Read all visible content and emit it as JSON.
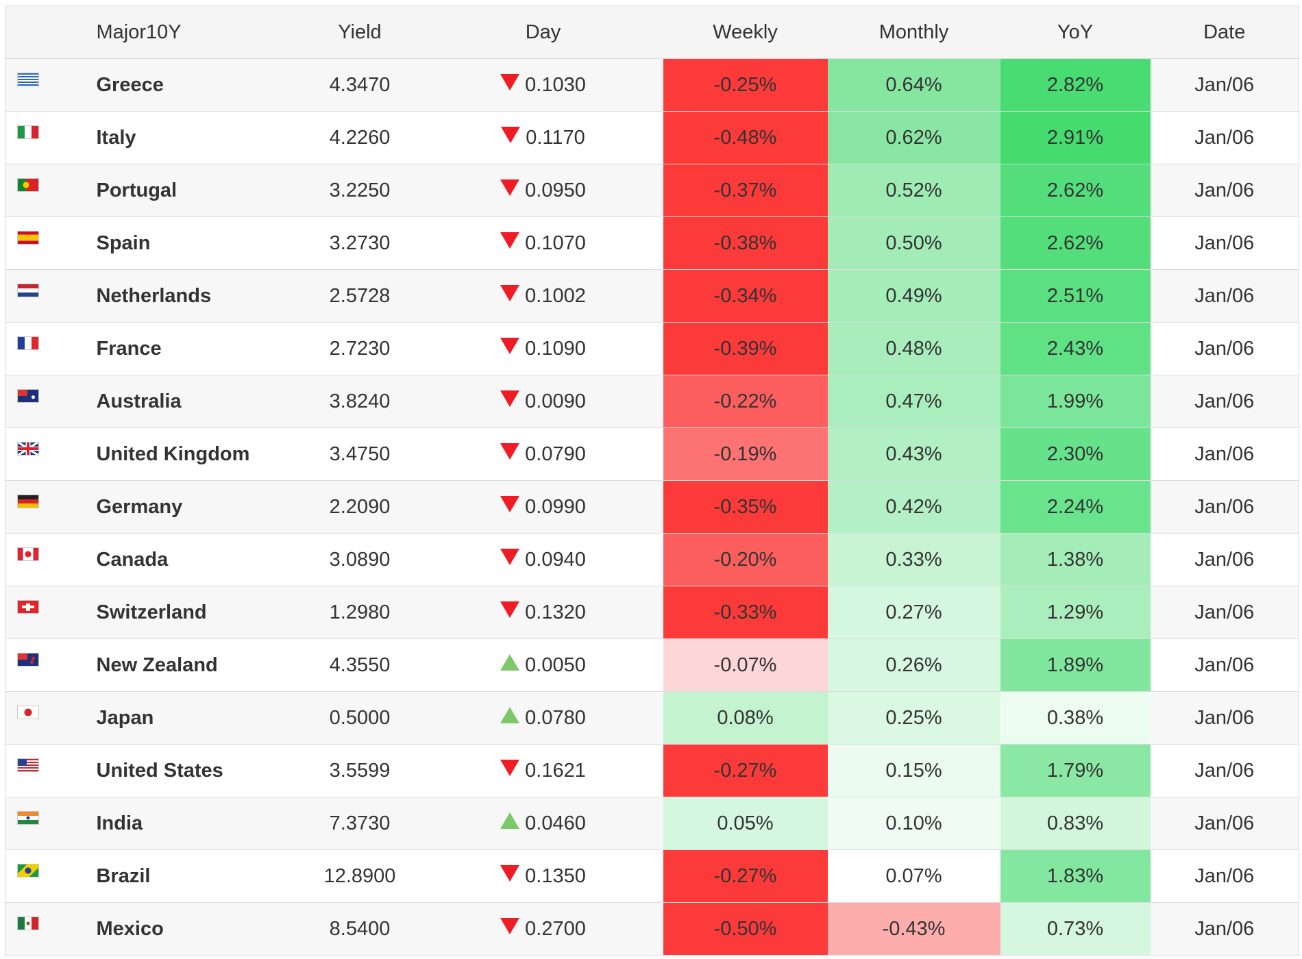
{
  "header": {
    "major": "Major10Y",
    "yield": "Yield",
    "day": "Day",
    "weekly": "Weekly",
    "monthly": "Monthly",
    "yoy": "YoY",
    "date": "Date"
  },
  "colors": {
    "arrow_down": "#ee1c25",
    "arrow_up": "#7dc96a"
  },
  "rows": [
    {
      "name": "Greece",
      "flag": "greece-flag-icon",
      "yield": "4.3470",
      "dir": "down",
      "day": "0.1030",
      "weekly": "-0.25%",
      "monthly": "0.64%",
      "yoy": "2.82%",
      "date": "Jan/06",
      "weekly_bg": "#fc3a3a",
      "monthly_bg": "#86e6a0",
      "yoy_bg": "#48dc72"
    },
    {
      "name": "Italy",
      "flag": "italy-flag-icon",
      "yield": "4.2260",
      "dir": "down",
      "day": "0.1170",
      "weekly": "-0.48%",
      "monthly": "0.62%",
      "yoy": "2.91%",
      "date": "Jan/06",
      "weekly_bg": "#fc3a3a",
      "monthly_bg": "#8ae7a3",
      "yoy_bg": "#45db6f"
    },
    {
      "name": "Portugal",
      "flag": "portugal-flag-icon",
      "yield": "3.2250",
      "dir": "down",
      "day": "0.0950",
      "weekly": "-0.37%",
      "monthly": "0.52%",
      "yoy": "2.62%",
      "date": "Jan/06",
      "weekly_bg": "#fc3a3a",
      "monthly_bg": "#9eebb3",
      "yoy_bg": "#54de7b"
    },
    {
      "name": "Spain",
      "flag": "spain-flag-icon",
      "yield": "3.2730",
      "dir": "down",
      "day": "0.1070",
      "weekly": "-0.38%",
      "monthly": "0.50%",
      "yoy": "2.62%",
      "date": "Jan/06",
      "weekly_bg": "#fc3a3a",
      "monthly_bg": "#a3ecb7",
      "yoy_bg": "#54de7b"
    },
    {
      "name": "Netherlands",
      "flag": "netherlands-flag-icon",
      "yield": "2.5728",
      "dir": "down",
      "day": "0.1002",
      "weekly": "-0.34%",
      "monthly": "0.49%",
      "yoy": "2.51%",
      "date": "Jan/06",
      "weekly_bg": "#fc3a3a",
      "monthly_bg": "#a5edb9",
      "yoy_bg": "#5ae080"
    },
    {
      "name": "France",
      "flag": "france-flag-icon",
      "yield": "2.7230",
      "dir": "down",
      "day": "0.1090",
      "weekly": "-0.39%",
      "monthly": "0.48%",
      "yoy": "2.43%",
      "date": "Jan/06",
      "weekly_bg": "#fc3a3a",
      "monthly_bg": "#a8edbb",
      "yoy_bg": "#5fe184"
    },
    {
      "name": "Australia",
      "flag": "australia-flag-icon",
      "yield": "3.8240",
      "dir": "down",
      "day": "0.0090",
      "weekly": "-0.22%",
      "monthly": "0.47%",
      "yoy": "1.99%",
      "date": "Jan/06",
      "weekly_bg": "#fc5e5e",
      "monthly_bg": "#aaeebd",
      "yoy_bg": "#7be699"
    },
    {
      "name": "United Kingdom",
      "flag": "uk-flag-icon",
      "yield": "3.4750",
      "dir": "down",
      "day": "0.0790",
      "weekly": "-0.19%",
      "monthly": "0.43%",
      "yoy": "2.30%",
      "date": "Jan/06",
      "weekly_bg": "#fd7373",
      "monthly_bg": "#b2f0c3",
      "yoy_bg": "#66e28a"
    },
    {
      "name": "Germany",
      "flag": "germany-flag-icon",
      "yield": "2.2090",
      "dir": "down",
      "day": "0.0990",
      "weekly": "-0.35%",
      "monthly": "0.42%",
      "yoy": "2.24%",
      "date": "Jan/06",
      "weekly_bg": "#fc3a3a",
      "monthly_bg": "#b4f0c5",
      "yoy_bg": "#6ae38d"
    },
    {
      "name": "Canada",
      "flag": "canada-flag-icon",
      "yield": "3.0890",
      "dir": "down",
      "day": "0.0940",
      "weekly": "-0.20%",
      "monthly": "0.33%",
      "yoy": "1.38%",
      "date": "Jan/06",
      "weekly_bg": "#fc5e5e",
      "monthly_bg": "#c8f4d4",
      "yoy_bg": "#a4edb8"
    },
    {
      "name": "Switzerland",
      "flag": "switzerland-flag-icon",
      "yield": "1.2980",
      "dir": "down",
      "day": "0.1320",
      "weekly": "-0.33%",
      "monthly": "0.27%",
      "yoy": "1.29%",
      "date": "Jan/06",
      "weekly_bg": "#fc3a3a",
      "monthly_bg": "#d6f7df",
      "yoy_bg": "#aaeebd"
    },
    {
      "name": "New Zealand",
      "flag": "new-zealand-flag-icon",
      "yield": "4.3550",
      "dir": "up",
      "day": "0.0050",
      "weekly": "-0.07%",
      "monthly": "0.26%",
      "yoy": "1.89%",
      "date": "Jan/06",
      "weekly_bg": "#fdd7d7",
      "monthly_bg": "#d8f7e1",
      "yoy_bg": "#82e79e"
    },
    {
      "name": "Japan",
      "flag": "japan-flag-icon",
      "yield": "0.5000",
      "dir": "up",
      "day": "0.0780",
      "weekly": "0.08%",
      "monthly": "0.25%",
      "yoy": "0.38%",
      "date": "Jan/06",
      "weekly_bg": "#c3f3cf",
      "monthly_bg": "#dbf8e3",
      "yoy_bg": "#ecfcf0"
    },
    {
      "name": "United States",
      "flag": "us-flag-icon",
      "yield": "3.5599",
      "dir": "down",
      "day": "0.1621",
      "weekly": "-0.27%",
      "monthly": "0.15%",
      "yoy": "1.79%",
      "date": "Jan/06",
      "weekly_bg": "#fc3a3a",
      "monthly_bg": "#ebfbef",
      "yoy_bg": "#8ae8a4"
    },
    {
      "name": "India",
      "flag": "india-flag-icon",
      "yield": "7.3730",
      "dir": "up",
      "day": "0.0460",
      "weekly": "0.05%",
      "monthly": "0.10%",
      "yoy": "0.83%",
      "date": "Jan/06",
      "weekly_bg": "#d6f7df",
      "monthly_bg": "#f0fcf3",
      "yoy_bg": "#d1f6db"
    },
    {
      "name": "Brazil",
      "flag": "brazil-flag-icon",
      "yield": "12.8900",
      "dir": "down",
      "day": "0.1350",
      "weekly": "-0.27%",
      "monthly": "0.07%",
      "yoy": "1.83%",
      "date": "Jan/06",
      "weekly_bg": "#fc3a3a",
      "monthly_bg": "#ffffff",
      "yoy_bg": "#84e79f"
    },
    {
      "name": "Mexico",
      "flag": "mexico-flag-icon",
      "yield": "8.5400",
      "dir": "down",
      "day": "0.2700",
      "weekly": "-0.50%",
      "monthly": "-0.43%",
      "yoy": "0.73%",
      "date": "Jan/06",
      "weekly_bg": "#fc3a3a",
      "monthly_bg": "#feadad",
      "yoy_bg": "#d5f7df"
    }
  ]
}
